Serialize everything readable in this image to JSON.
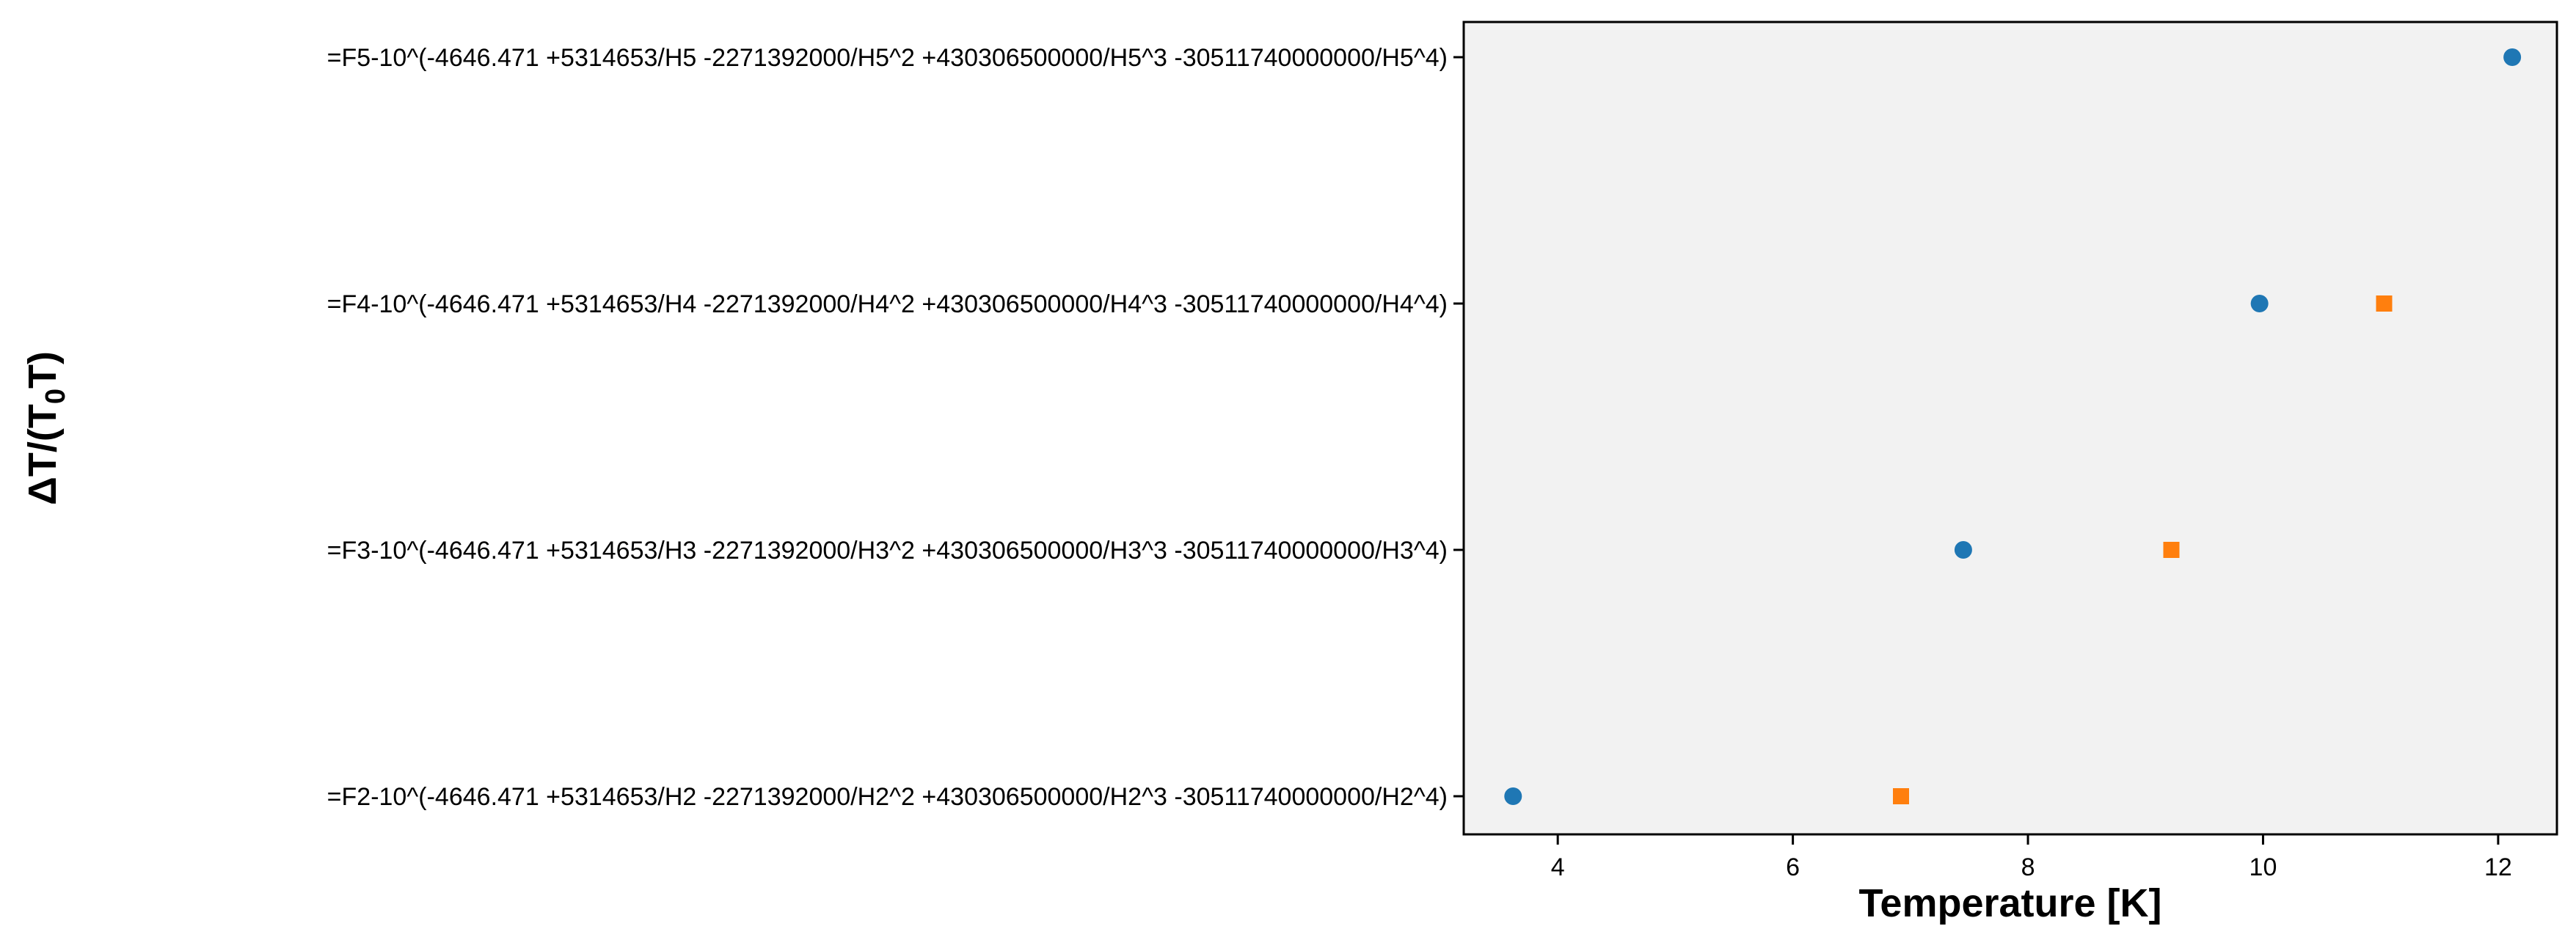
{
  "chart_data": {
    "type": "scatter",
    "title": "",
    "xlabel": "Temperature [K]",
    "ylabel_parts": {
      "main": "ΔT/(T",
      "sub": "0",
      "tail": "T)"
    },
    "xlim": [
      3.2,
      12.5
    ],
    "x_ticks": [
      4,
      6,
      8,
      10,
      12
    ],
    "y_categories": [
      "=F2-10^(-4646.471 +5314653/H2 -2271392000/H2^2 +430306500000/H2^3 -30511740000000/H2^4)",
      "=F3-10^(-4646.471 +5314653/H3 -2271392000/H3^2 +430306500000/H3^3 -30511740000000/H3^4)",
      "=F4-10^(-4646.471 +5314653/H4 -2271392000/H4^2 +430306500000/H4^3 -30511740000000/H4^4)",
      "=F5-10^(-4646.471 +5314653/H5 -2271392000/H5^2 +430306500000/H5^3 -30511740000000/H5^4)"
    ],
    "grid": false,
    "legend": false,
    "series": [
      {
        "marker": "circle",
        "color": "#1f77b4",
        "points": [
          {
            "x": 3.62,
            "y": "=F2-10^(-4646.471 +5314653/H2 -2271392000/H2^2 +430306500000/H2^3 -30511740000000/H2^4)"
          },
          {
            "x": 7.45,
            "y": "=F3-10^(-4646.471 +5314653/H3 -2271392000/H3^2 +430306500000/H3^3 -30511740000000/H3^4)"
          },
          {
            "x": 9.97,
            "y": "=F4-10^(-4646.471 +5314653/H4 -2271392000/H4^2 +430306500000/H4^3 -30511740000000/H4^4)"
          },
          {
            "x": 12.12,
            "y": "=F5-10^(-4646.471 +5314653/H5 -2271392000/H5^2 +430306500000/H5^3 -30511740000000/H5^4)"
          }
        ]
      },
      {
        "marker": "square",
        "color": "#ff7f0e",
        "points": [
          {
            "x": 6.92,
            "y": "=F2-10^(-4646.471 +5314653/H2 -2271392000/H2^2 +430306500000/H2^3 -30511740000000/H2^4)"
          },
          {
            "x": 9.22,
            "y": "=F3-10^(-4646.471 +5314653/H3 -2271392000/H3^2 +430306500000/H3^3 -30511740000000/H3^4)"
          },
          {
            "x": 11.03,
            "y": "=F4-10^(-4646.471 +5314653/H4 -2271392000/H4^2 +430306500000/H4^3 -30511740000000/H4^4)"
          }
        ]
      }
    ],
    "plot_background": "#f2f2f2"
  }
}
